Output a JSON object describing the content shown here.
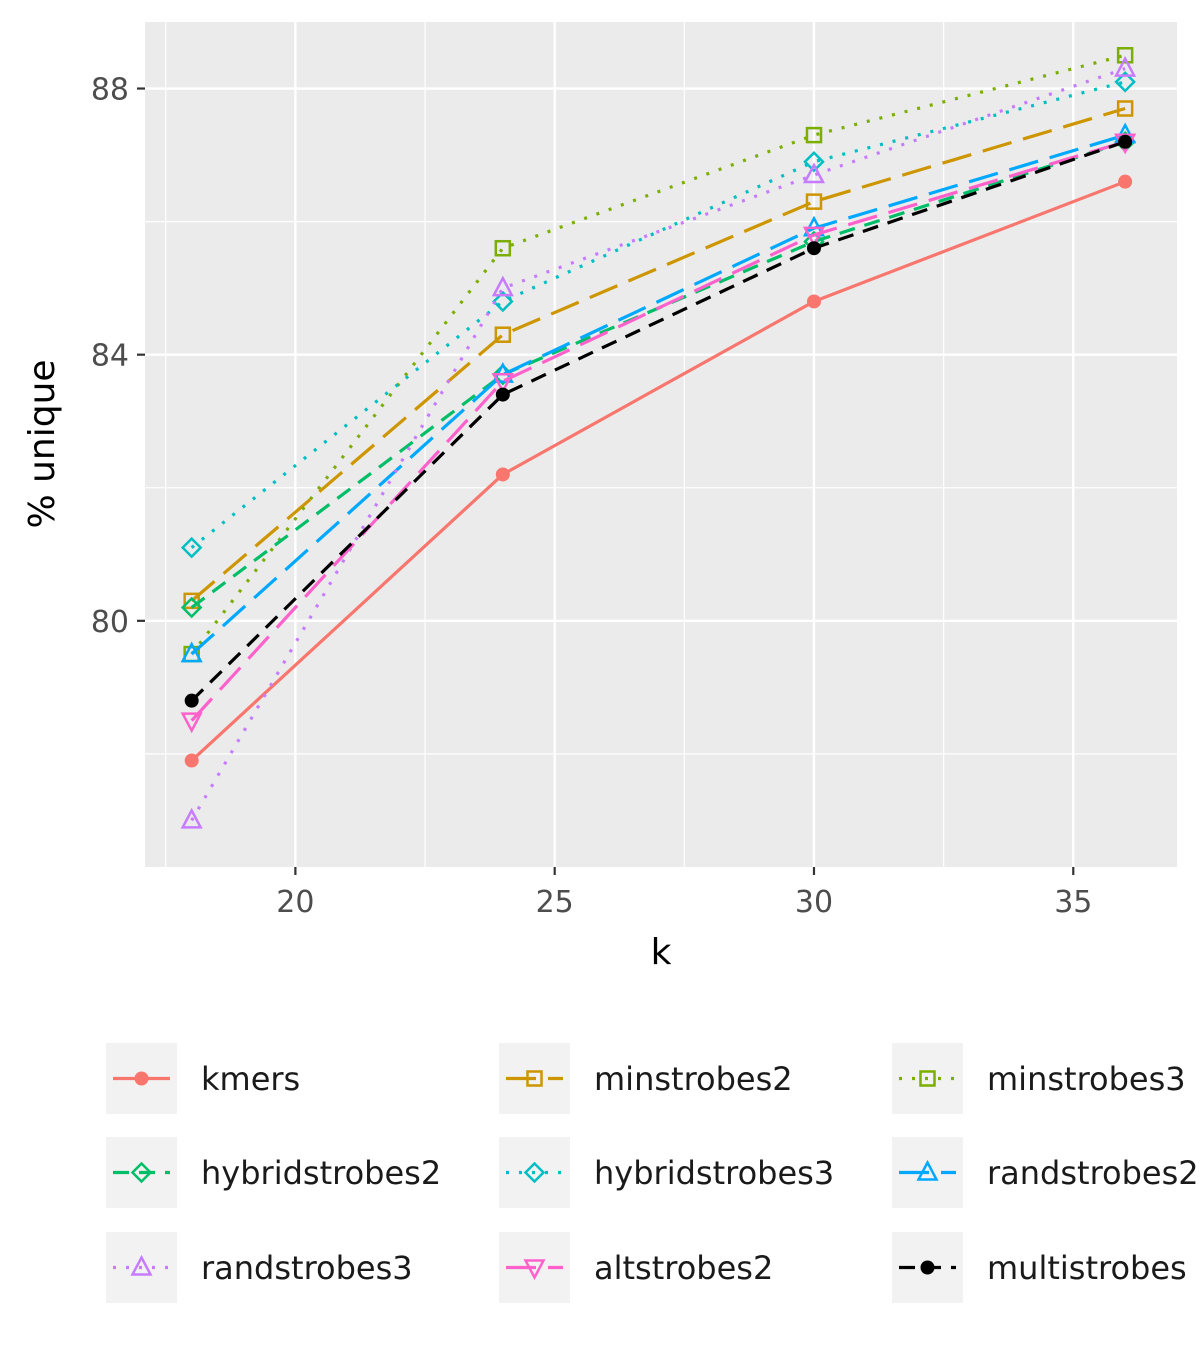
{
  "chart_data": {
    "type": "line",
    "xlabel": "k",
    "ylabel": "% unique",
    "xlim": [
      17.1,
      37.0
    ],
    "ylim": [
      76.3,
      89.0
    ],
    "xticks": [
      20,
      25,
      30,
      35
    ],
    "yticks": [
      80,
      84,
      88
    ],
    "grid": true,
    "legend_position": "bottom",
    "x": [
      18,
      24,
      30,
      36
    ],
    "series": [
      {
        "name": "kmers",
        "color": "#F8766D",
        "dash": "solid",
        "marker": "filled-circle",
        "values": [
          77.9,
          82.2,
          84.8,
          86.6
        ]
      },
      {
        "name": "minstrobes2",
        "color": "#CD9600",
        "dash": "longdash",
        "marker": "open-square",
        "values": [
          80.3,
          84.3,
          86.3,
          87.7
        ]
      },
      {
        "name": "minstrobes3",
        "color": "#7CAE00",
        "dash": "dotted",
        "marker": "open-square",
        "values": [
          79.5,
          85.6,
          87.3,
          88.5
        ]
      },
      {
        "name": "hybridstrobes2",
        "color": "#00BE67",
        "dash": "dashed",
        "marker": "open-diamond",
        "values": [
          80.2,
          83.7,
          85.7,
          87.2
        ]
      },
      {
        "name": "hybridstrobes3",
        "color": "#00BFC4",
        "dash": "dotted",
        "marker": "open-diamond",
        "values": [
          81.1,
          84.8,
          86.9,
          88.1
        ]
      },
      {
        "name": "randstrobes2",
        "color": "#00A9FF",
        "dash": "longdash",
        "marker": "open-triangle",
        "values": [
          79.5,
          83.7,
          85.9,
          87.3
        ]
      },
      {
        "name": "randstrobes3",
        "color": "#C77CFF",
        "dash": "dotted",
        "marker": "open-triangle",
        "values": [
          77.0,
          85.0,
          86.7,
          88.3
        ]
      },
      {
        "name": "altstrobes2",
        "color": "#FF61CC",
        "dash": "longdash",
        "marker": "open-triangle-down",
        "values": [
          78.5,
          83.6,
          85.8,
          87.2
        ]
      },
      {
        "name": "multistrobes",
        "color": "#000000",
        "dash": "dashed",
        "marker": "filled-circle",
        "values": [
          78.8,
          83.4,
          85.6,
          87.2
        ]
      }
    ]
  }
}
